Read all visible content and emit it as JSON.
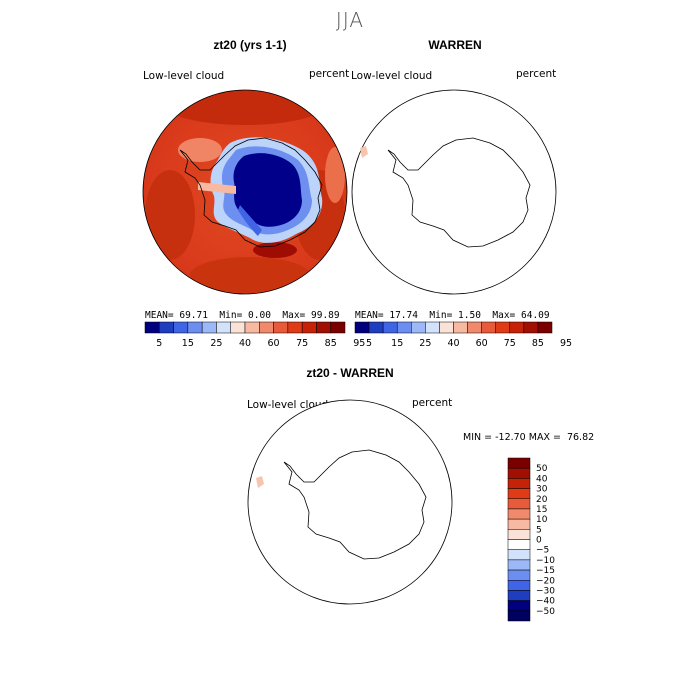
{
  "figure": {
    "title": "JJA"
  },
  "panels": [
    {
      "title": "zt20 (yrs 1-1)",
      "field_label": "Low-level cloud",
      "units_label": "percent",
      "stats": {
        "mean_label": "MEAN=",
        "mean": "69.71",
        "min_label": "Min=",
        "min": "0.00",
        "max_label": "Max=",
        "max": "99.89"
      }
    },
    {
      "title": "WARREN",
      "field_label": "Low-level cloud",
      "units_label": "percent",
      "stats": {
        "mean_label": "MEAN=",
        "mean": "17.74",
        "min_label": "Min=",
        "min": "1.50",
        "max_label": "Max=",
        "max": "64.09"
      }
    },
    {
      "title": "zt20 - WARREN",
      "field_label": "Low-level cloud",
      "units_label": "percent",
      "stats_text": "MIN = -12.70 MAX =  76.82"
    }
  ],
  "colorbar_top": {
    "colors": [
      "#00007f",
      "#1f3dbf",
      "#3f64e6",
      "#6b8ef0",
      "#9db8f7",
      "#d2e2fb",
      "#fbe2d6",
      "#f7b9a1",
      "#f18a6c",
      "#e85b3a",
      "#df3b16",
      "#c52207",
      "#a10f03",
      "#7a0000"
    ],
    "tick_labels": [
      "5",
      "15",
      "25",
      "40",
      "60",
      "75",
      "85",
      "95"
    ]
  },
  "colorbar_diff": {
    "colors_top_to_bottom": [
      "#7a0000",
      "#a10f03",
      "#c52207",
      "#df3b16",
      "#e85b3a",
      "#f18a6c",
      "#f7b9a1",
      "#fbe2d6",
      "#ffffff",
      "#d2e2fb",
      "#9db8f7",
      "#6b8ef0",
      "#3f64e6",
      "#1f3dbf",
      "#00007f",
      "#000060"
    ],
    "tick_labels": [
      "50",
      "40",
      "30",
      "20",
      "15",
      "10",
      "5",
      "0",
      "−5",
      "−10",
      "−15",
      "−20",
      "−30",
      "−40",
      "−50"
    ]
  },
  "chart_data": [
    {
      "type": "heatmap",
      "title": "zt20 (yrs 1-1)",
      "field": "Low-level cloud",
      "units": "percent",
      "projection": "south polar stereographic",
      "mean": 69.71,
      "min": 0.0,
      "max": 99.89,
      "contour_levels": [
        5,
        15,
        25,
        40,
        60,
        75,
        85,
        95
      ]
    },
    {
      "type": "heatmap",
      "title": "WARREN",
      "field": "Low-level cloud",
      "units": "percent",
      "projection": "south polar stereographic",
      "mean": 17.74,
      "min": 1.5,
      "max": 64.09,
      "contour_levels": [
        5,
        15,
        25,
        40,
        60,
        75,
        85,
        95
      ]
    },
    {
      "type": "heatmap",
      "title": "zt20 - WARREN",
      "field": "Low-level cloud",
      "units": "percent",
      "projection": "south polar stereographic",
      "min": -12.7,
      "max": 76.82,
      "contour_levels": [
        -50,
        -40,
        -30,
        -20,
        -15,
        -10,
        -5,
        0,
        5,
        10,
        15,
        20,
        30,
        40,
        50
      ]
    }
  ]
}
